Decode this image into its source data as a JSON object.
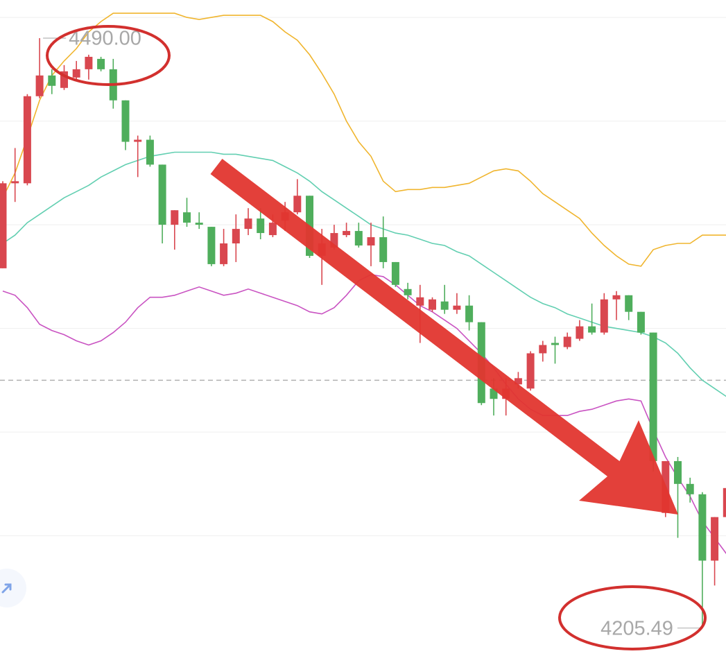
{
  "chart_data": {
    "type": "candlestick",
    "open": [
      4379,
      4420,
      4420,
      4462,
      4472,
      4466,
      4471,
      4475,
      4480,
      4475,
      4460,
      4440,
      4441,
      4429,
      4400,
      4406,
      4401,
      4399,
      4381,
      4391,
      4398,
      4403,
      4395,
      4402,
      4406,
      4414,
      4385,
      4389,
      4395,
      4397,
      4390,
      4394,
      4382,
      4369,
      4361,
      4359,
      4363,
      4359,
      4361,
      4353,
      4321,
      4316,
      4323,
      4321,
      4338,
      4343,
      4341,
      4345,
      4351,
      4348,
      4364,
      4366,
      4358,
      4348,
      4261,
      4286,
      4275,
      4270,
      4238,
      4259
    ],
    "high": [
      4421,
      4437,
      4463,
      4490,
      4475,
      4477,
      4479,
      4482,
      4481,
      4480,
      4460,
      4443,
      4443,
      4429,
      4407,
      4413,
      4406,
      4399,
      4398,
      4405,
      4408,
      4408,
      4405,
      4411,
      4422,
      4414,
      4398,
      4400,
      4401,
      4401,
      4401,
      4404,
      4382,
      4372,
      4371,
      4365,
      4371,
      4367,
      4366,
      4353,
      4326,
      4326,
      4329,
      4339,
      4344,
      4346,
      4348,
      4354,
      4362,
      4367,
      4368,
      4366,
      4358,
      4348,
      4286,
      4288,
      4278,
      4271,
      4259,
      4274
    ],
    "low": [
      4379,
      4411,
      4419,
      4461,
      4463,
      4465,
      4470,
      4470,
      4474,
      4456,
      4436,
      4423,
      4428,
      4391,
      4388,
      4399,
      4398,
      4380,
      4380,
      4382,
      4395,
      4393,
      4394,
      4397,
      4405,
      4384,
      4371,
      4388,
      4394,
      4389,
      4380,
      4379,
      4370,
      4364,
      4343,
      4358,
      4357,
      4357,
      4349,
      4313,
      4308,
      4308,
      4321,
      4320,
      4334,
      4333,
      4340,
      4344,
      4347,
      4347,
      4354,
      4354,
      4347,
      4281,
      4259,
      4249,
      4266,
      4205.49,
      4226,
      4259
    ],
    "close": [
      4420,
      4421,
      4462,
      4472,
      4467,
      4474,
      4475,
      4481,
      4475,
      4460,
      4440,
      4441,
      4429,
      4400,
      4407,
      4401,
      4400,
      4381,
      4391,
      4398,
      4403,
      4396,
      4401,
      4406,
      4414,
      4385,
      4391,
      4396,
      4397,
      4390,
      4394,
      4382,
      4371,
      4366,
      4365,
      4364,
      4359,
      4361,
      4353,
      4314,
      4316,
      4321,
      4326,
      4338,
      4342,
      4342,
      4346,
      4351,
      4348,
      4364,
      4366,
      4358,
      4348,
      4286,
      4286,
      4275,
      4270,
      4238,
      4259,
      4273
    ],
    "up_color": "#d9474f",
    "down_color": "#4fae5c",
    "series": [
      {
        "color": "#f0b52e",
        "values": [
          4413,
          4425,
          4442,
          4460,
          4472,
          4479,
          4485,
          4493,
          4498,
          4502,
          4502,
          4502,
          4502,
          4502,
          4502,
          4500,
          4499,
          4500,
          4501,
          4501,
          4501,
          4501,
          4498,
          4493,
          4489,
          4482,
          4473,
          4463,
          4450,
          4440,
          4433,
          4421,
          4416,
          4417,
          4417,
          4418,
          4418,
          4419,
          4420,
          4423,
          4426,
          4427,
          4426,
          4421,
          4415,
          4411,
          4407,
          4403,
          4396,
          4390,
          4385,
          4381,
          4380,
          4388,
          4390,
          4391,
          4391,
          4395,
          4395,
          4395
        ]
      },
      {
        "color": "#62cfb1",
        "values": [
          4391,
          4395,
          4401,
          4405,
          4409,
          4413,
          4416,
          4419,
          4423,
          4426,
          4429,
          4431,
          4433,
          4434,
          4435,
          4435,
          4435,
          4435,
          4434,
          4434,
          4433,
          4432,
          4431,
          4428,
          4425,
          4421,
          4416,
          4412,
          4408,
          4404,
          4400,
          4398,
          4396,
          4395,
          4393,
          4391,
          4390,
          4387,
          4385,
          4381,
          4377,
          4373,
          4369,
          4365,
          4362,
          4360,
          4357,
          4355,
          4353,
          4351,
          4350,
          4349,
          4348,
          4346,
          4343,
          4338,
          4331,
          4325,
          4321,
          4317
        ]
      },
      {
        "color": "#c953c2",
        "values": [
          4368,
          4366,
          4360,
          4352,
          4349,
          4347,
          4344,
          4342,
          4344,
          4348,
          4353,
          4360,
          4365,
          4365,
          4366,
          4368,
          4370,
          4368,
          4366,
          4367,
          4369,
          4367,
          4365,
          4363,
          4361,
          4358,
          4357,
          4360,
          4366,
          4373,
          4376,
          4375,
          4371,
          4366,
          4361,
          4358,
          4354,
          4350,
          4344,
          4338,
          4331,
          4323,
          4316,
          4311,
          4308,
          4308,
          4308,
          4310,
          4311,
          4313,
          4315,
          4316,
          4315,
          4301,
          4288,
          4278,
          4269,
          4257,
          4249,
          4241
        ]
      }
    ],
    "reference_line": 4325,
    "annotations": [
      {
        "value": 4490,
        "label": "4490.00"
      },
      {
        "value": 4205.49,
        "label": "4205.49"
      }
    ],
    "ylim": [
      4192,
      4508.4
    ],
    "yticks": [
      4500,
      4450,
      4400,
      4350,
      4300,
      4250
    ],
    "grid": true
  }
}
